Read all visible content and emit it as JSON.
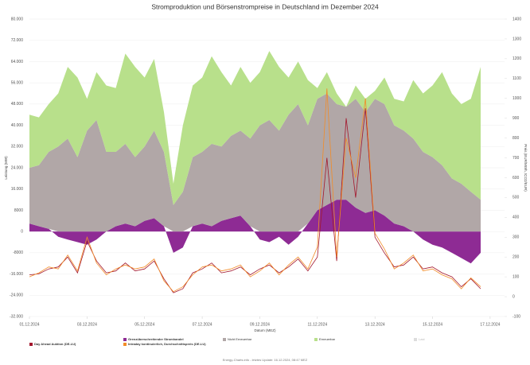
{
  "chart_data": {
    "type": "area-line",
    "title": "Stromproduktion und Börsenstrompreise in Deutschland im Dezember 2024",
    "ylabel": "Leistung (MW)",
    "y2label": "Preis (EUR/MWh, tCO2/EUR)",
    "xlabel": "Datum (MEZ)",
    "footer": "Energy-Charts.info - letztes Update: 16.12.2024, 08:47 MEZ",
    "x": [
      1,
      1.33,
      1.67,
      2,
      2.33,
      2.67,
      3,
      3.33,
      3.67,
      4,
      4.33,
      4.67,
      5,
      5.33,
      5.67,
      6,
      6.33,
      6.67,
      7,
      7.33,
      7.67,
      8,
      8.33,
      8.67,
      9,
      9.33,
      9.67,
      10,
      10.33,
      10.67,
      11,
      11.33,
      11.67,
      12,
      12.33,
      12.67,
      13,
      13.33,
      13.67,
      14,
      14.33,
      14.67,
      15,
      15.33,
      15.67,
      16,
      16.33,
      16.67
    ],
    "xlim": [
      1,
      17.5
    ],
    "xticks": [
      {
        "value": 1,
        "label": "01.12.2024"
      },
      {
        "value": 3,
        "label": "03.12.2024"
      },
      {
        "value": 5,
        "label": "05.12.2024"
      },
      {
        "value": 7,
        "label": "07.12.2024"
      },
      {
        "value": 9,
        "label": "09.12.2024"
      },
      {
        "value": 11,
        "label": "11.12.2024"
      },
      {
        "value": 13,
        "label": "13.12.2024"
      },
      {
        "value": 15,
        "label": "15.12.2024"
      },
      {
        "value": 17,
        "label": "17.12.2024"
      }
    ],
    "ylim": [
      -32000,
      80000
    ],
    "yticks": [
      {
        "value": 80000,
        "label": "80.000"
      },
      {
        "value": 72000,
        "label": "72.000"
      },
      {
        "value": 64000,
        "label": "64.000"
      },
      {
        "value": 56000,
        "label": "56.000"
      },
      {
        "value": 48000,
        "label": "48.000"
      },
      {
        "value": 40000,
        "label": "40.000"
      },
      {
        "value": 32000,
        "label": "32.000"
      },
      {
        "value": 24000,
        "label": "24.000"
      },
      {
        "value": 16000,
        "label": "16.000"
      },
      8000,
      0,
      -8000,
      {
        "value": -16000,
        "label": "-16.000"
      },
      {
        "value": -24000,
        "label": "-24.000"
      },
      {
        "value": -32000,
        "label": "-32.000"
      }
    ],
    "y2lim": [
      -100,
      1400
    ],
    "y2ticks": [
      1400,
      1300,
      1200,
      1100,
      1000,
      900,
      800,
      700,
      600,
      500,
      400,
      300,
      200,
      100,
      0,
      -100
    ],
    "grid": true,
    "series": [
      {
        "name": "Grenzüberschreitender Stromhandel",
        "kind": "area",
        "color": "#8e2b94",
        "values": [
          3000,
          2000,
          1000,
          -2000,
          -3000,
          -4000,
          -5000,
          -3000,
          0,
          2000,
          3000,
          2000,
          4000,
          5000,
          2000,
          -8000,
          -6000,
          2000,
          3000,
          2000,
          4000,
          5000,
          6000,
          2000,
          -3000,
          -4000,
          -2000,
          -5000,
          -2000,
          3000,
          8000,
          10000,
          12000,
          12000,
          9000,
          7000,
          8000,
          6000,
          3000,
          2000,
          0,
          -3000,
          -5000,
          -6000,
          -8000,
          -10000,
          -12000,
          -8000
        ]
      },
      {
        "name": "Nicht Erneuerbar",
        "kind": "area",
        "color": "#b1a7a7",
        "values": [
          21000,
          23000,
          29000,
          32000,
          35000,
          28000,
          38000,
          42000,
          30000,
          28000,
          30000,
          26000,
          28000,
          33000,
          28000,
          10000,
          15000,
          26000,
          27000,
          31000,
          28000,
          31000,
          32000,
          33000,
          40000,
          42000,
          38000,
          44000,
          48000,
          37000,
          42000,
          42000,
          36000,
          35000,
          41000,
          38000,
          42000,
          42000,
          37000,
          36000,
          35000,
          30000,
          28000,
          25000,
          20000,
          18000,
          15000,
          12000
        ]
      },
      {
        "name": "Erneuerbar",
        "kind": "area",
        "color": "#b8e08b",
        "values": [
          20000,
          18000,
          18000,
          20000,
          27000,
          30000,
          12000,
          18000,
          25000,
          24000,
          34000,
          34000,
          26000,
          27000,
          15000,
          8000,
          25000,
          27000,
          28000,
          33000,
          28000,
          19000,
          24000,
          21000,
          20000,
          26000,
          24000,
          14000,
          16000,
          17000,
          4000,
          8000,
          4000,
          0,
          5000,
          5000,
          3000,
          10000,
          10000,
          11000,
          22000,
          22000,
          27000,
          35000,
          32000,
          30000,
          35000,
          50000
        ]
      },
      {
        "name": "Day Ahead Auktion (DE-LU)",
        "kind": "line",
        "axis": "y2",
        "color": "#a3172d",
        "values": [
          110,
          115,
          140,
          150,
          200,
          120,
          280,
          180,
          120,
          130,
          170,
          130,
          140,
          180,
          90,
          20,
          40,
          120,
          140,
          170,
          120,
          130,
          150,
          110,
          140,
          160,
          120,
          150,
          190,
          130,
          200,
          700,
          180,
          900,
          500,
          950,
          300,
          220,
          150,
          160,
          200,
          140,
          150,
          120,
          100,
          50,
          90,
          40
        ]
      },
      {
        "name": "Intraday kontinuierlich, Durchschnittspreis (DE-LU)",
        "kind": "line",
        "axis": "y2",
        "color": "#f28c28",
        "values": [
          100,
          120,
          150,
          140,
          210,
          130,
          300,
          170,
          110,
          140,
          160,
          140,
          150,
          190,
          80,
          25,
          50,
          110,
          150,
          160,
          130,
          140,
          160,
          100,
          130,
          170,
          110,
          160,
          200,
          140,
          250,
          1050,
          200,
          800,
          600,
          1000,
          320,
          240,
          140,
          170,
          210,
          130,
          140,
          110,
          90,
          40,
          95,
          50
        ]
      }
    ],
    "hidden_legend": [
      "Last"
    ]
  }
}
